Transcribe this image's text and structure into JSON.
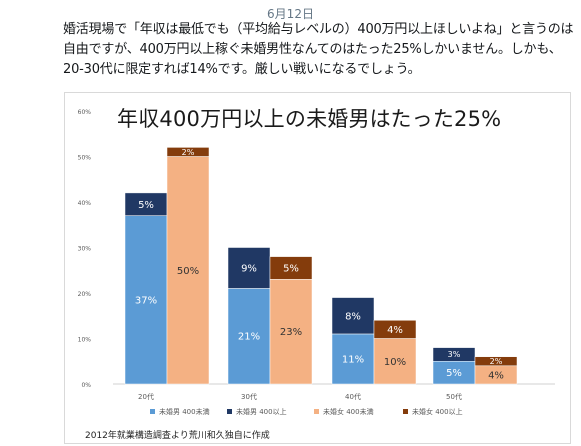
{
  "tweet": {
    "date": "6月12日",
    "text": "婚活現場で「年収は最低でも（平均給与レベルの）400万円以上ほしいよね」と言うのは自由ですが、400万円以上稼ぐ未婚男性なんてのはたった25%しかいません。しかも、20-30代に限定すれば14%です。厳しい戦いになるでしょう。"
  },
  "chart_data": {
    "type": "bar",
    "stacked": true,
    "title": "年収400万円以上の未婚男はたった25%",
    "categories": [
      "20代",
      "30代",
      "40代",
      "50代"
    ],
    "ylim": [
      0,
      60
    ],
    "yticks": [
      "0%",
      "10%",
      "20%",
      "30%",
      "40%",
      "50%",
      "60%"
    ],
    "groups": [
      {
        "name": "男",
        "series": [
          {
            "name": "未婚男 400未満",
            "values": [
              37,
              21,
              11,
              5
            ],
            "labels": [
              "37%",
              "21%",
              "11%",
              "5%"
            ],
            "color": "#5b9bd5"
          },
          {
            "name": "未婚男 400以上",
            "values": [
              5,
              9,
              8,
              3
            ],
            "labels": [
              "5%",
              "9%",
              "8%",
              "3%"
            ],
            "color": "#203864"
          }
        ]
      },
      {
        "name": "女",
        "series": [
          {
            "name": "未婚女 400未満",
            "values": [
              50,
              23,
              10,
              4
            ],
            "labels": [
              "50%",
              "23%",
              "10%",
              "4%"
            ],
            "color": "#f4b183"
          },
          {
            "name": "未婚女 400以上",
            "values": [
              2,
              5,
              4,
              2
            ],
            "labels": [
              "2%",
              "5%",
              "4%",
              "2%"
            ],
            "color": "#843c0c"
          }
        ]
      }
    ],
    "legend": [
      "未婚男 400未満",
      "未婚男 400以上",
      "未婚女 400未満",
      "未婚女 400以上"
    ],
    "legend_position": "bottom",
    "grid": false
  },
  "source_note": "2012年就業構造調査より荒川和久独自に作成"
}
